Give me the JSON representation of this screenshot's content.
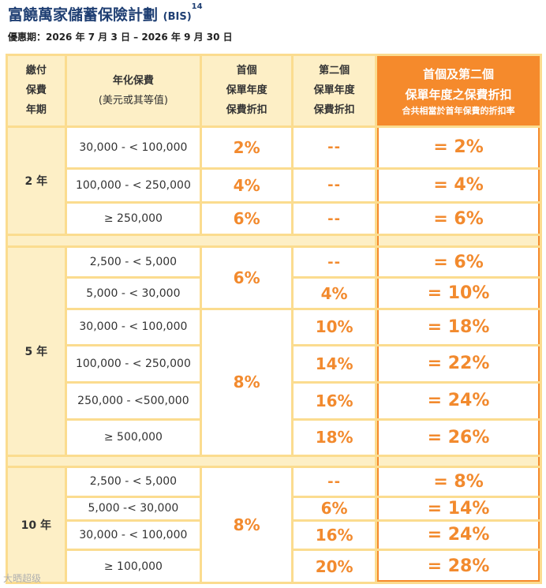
{
  "title": {
    "main": "富饒萬家儲蓄保險計劃",
    "code": "(BIS)",
    "note": "14"
  },
  "offer_period": "優惠期：2026 年 7 月 3 日 – 2026 年 9 月 30 日",
  "header": {
    "term": [
      "繳付",
      "保費",
      "年期"
    ],
    "premium": [
      "年化保費",
      "(美元或其等值)"
    ],
    "first": [
      "首個",
      "保單年度",
      "保費折扣"
    ],
    "second": [
      "第二個",
      "保單年度",
      "保費折扣"
    ],
    "total": [
      "首個及第二個",
      "保單年度之保費折扣"
    ],
    "total_note": "合共相當於首年保費的折扣率"
  },
  "groups": [
    {
      "term": "2 年",
      "rows": [
        {
          "band": "30,000 - < 100,000",
          "first": "2%",
          "second": "--",
          "total": "= 2%"
        },
        {
          "band": "100,000 - < 250,000",
          "first": "4%",
          "second": "--",
          "total": "= 4%"
        },
        {
          "band": "≥ 250,000",
          "first": "6%",
          "second": "--",
          "total": "= 6%"
        }
      ]
    },
    {
      "term": "5 年",
      "first_a": "6%",
      "first_b": "8%",
      "rows": [
        {
          "band": "2,500 - < 5,000",
          "second": "--",
          "total": "= 6%"
        },
        {
          "band": "5,000 - < 30,000",
          "second": "4%",
          "total": "= 10%"
        },
        {
          "band": "30,000 - < 100,000",
          "second": "10%",
          "total": "= 18%"
        },
        {
          "band": "100,000 - < 250,000",
          "second": "14%",
          "total": "= 22%"
        },
        {
          "band": "250,000 - <500,000",
          "second": "16%",
          "total": "= 24%"
        },
        {
          "band": "≥ 500,000",
          "second": "18%",
          "total": "= 26%"
        }
      ]
    },
    {
      "term": "10 年",
      "first": "8%",
      "rows": [
        {
          "band": "2,500 - < 5,000",
          "second": "--",
          "total": "= 8%"
        },
        {
          "band": "5,000 -< 30,000",
          "second": "6%",
          "total": "= 14%"
        },
        {
          "band": "30,000 - < 100,000",
          "second": "16%",
          "total": "= 24%"
        },
        {
          "band": "≥ 100,000",
          "second": "20%",
          "total": "= 28%"
        }
      ]
    }
  ],
  "watermark": "大晒超级"
}
